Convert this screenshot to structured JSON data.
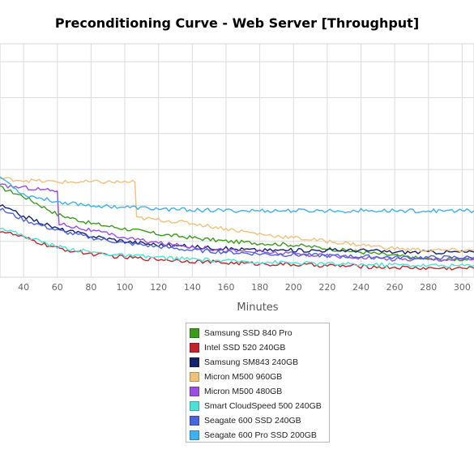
{
  "chart_data": {
    "type": "line",
    "title": "Preconditioning Curve - Web Server [Throughput]",
    "xlabel": "Minutes",
    "ylabel": "",
    "xlim": [
      26,
      307
    ],
    "ylim": [
      0,
      13
    ],
    "x_ticks": [
      40,
      60,
      80,
      100,
      120,
      140,
      160,
      180,
      200,
      220,
      240,
      260,
      280,
      300
    ],
    "grid": true,
    "legend_position": "bottom",
    "series": [
      {
        "name": "Samsung SSD 840 Pro",
        "color": "#3b9c1c",
        "x": [
          26,
          40,
          60,
          80,
          100,
          120,
          140,
          160,
          180,
          200,
          220,
          240,
          260,
          280,
          300,
          307
        ],
        "y": [
          5.0,
          4.5,
          3.5,
          3.0,
          2.7,
          2.4,
          2.2,
          2.0,
          1.9,
          1.8,
          1.6,
          1.4,
          1.2,
          1.0,
          1.0,
          1.0
        ]
      },
      {
        "name": "Intel SSD 520 240GB",
        "color": "#c0262b",
        "x": [
          26,
          40,
          60,
          80,
          100,
          120,
          140,
          160,
          180,
          200,
          220,
          240,
          260,
          280,
          300,
          307
        ],
        "y": [
          2.6,
          2.2,
          1.6,
          1.3,
          1.1,
          1.0,
          0.9,
          0.8,
          0.75,
          0.7,
          0.65,
          0.6,
          0.55,
          0.5,
          0.5,
          0.5
        ]
      },
      {
        "name": "Samsung SM843 240GB",
        "color": "#13226e",
        "x": [
          26,
          40,
          60,
          80,
          100,
          120,
          140,
          160,
          180,
          200,
          220,
          240,
          260,
          280,
          300,
          307
        ],
        "y": [
          4.0,
          3.4,
          2.7,
          2.3,
          2.0,
          1.8,
          1.7,
          1.6,
          1.5,
          1.5,
          1.5,
          1.5,
          1.4,
          1.4,
          1.4,
          1.4
        ]
      },
      {
        "name": "Micron M500 960GB",
        "color": "#f0c07d",
        "x": [
          26,
          40,
          60,
          80,
          100,
          106,
          107,
          120,
          140,
          160,
          180,
          200,
          220,
          240,
          260,
          280,
          300,
          307
        ],
        "y": [
          5.5,
          5.4,
          5.3,
          5.3,
          5.3,
          5.3,
          3.3,
          3.2,
          3.0,
          2.7,
          2.4,
          2.2,
          2.0,
          1.8,
          1.6,
          1.5,
          1.5,
          1.5
        ]
      },
      {
        "name": "Micron M500 480GB",
        "color": "#9b4ee0",
        "x": [
          26,
          40,
          50,
          60,
          61,
          80,
          100,
          120,
          140,
          160,
          180,
          200,
          220,
          240,
          260,
          280,
          300,
          307
        ],
        "y": [
          5.1,
          5.0,
          4.9,
          4.8,
          3.0,
          2.6,
          2.2,
          1.9,
          1.7,
          1.5,
          1.4,
          1.3,
          1.2,
          1.1,
          1.0,
          1.0,
          1.0,
          1.0
        ]
      },
      {
        "name": "Smart CloudSpeed 500 240GB",
        "color": "#4fe0d8",
        "x": [
          26,
          40,
          60,
          80,
          100,
          120,
          140,
          160,
          180,
          200,
          220,
          240,
          260,
          280,
          300,
          307
        ],
        "y": [
          2.8,
          2.3,
          1.7,
          1.4,
          1.2,
          1.1,
          1.0,
          0.9,
          0.85,
          0.8,
          0.75,
          0.7,
          0.7,
          0.65,
          0.65,
          0.65
        ]
      },
      {
        "name": "Seagate 600 SSD 240GB",
        "color": "#4a64dc",
        "x": [
          26,
          40,
          60,
          80,
          100,
          120,
          140,
          160,
          180,
          200,
          220,
          240,
          260,
          280,
          300,
          307
        ],
        "y": [
          3.8,
          3.2,
          2.6,
          2.2,
          1.9,
          1.7,
          1.5,
          1.4,
          1.3,
          1.25,
          1.2,
          1.15,
          1.1,
          1.1,
          1.1,
          1.1
        ]
      },
      {
        "name": "Seagate 600 Pro SSD 200GB",
        "color": "#3fb0ec",
        "x": [
          26,
          40,
          60,
          80,
          100,
          120,
          140,
          160,
          180,
          200,
          220,
          240,
          260,
          280,
          300,
          307
        ],
        "y": [
          5.6,
          4.6,
          4.2,
          4.0,
          3.9,
          3.8,
          3.75,
          3.7,
          3.7,
          3.7,
          3.7,
          3.7,
          3.7,
          3.7,
          3.7,
          3.7
        ]
      }
    ]
  }
}
